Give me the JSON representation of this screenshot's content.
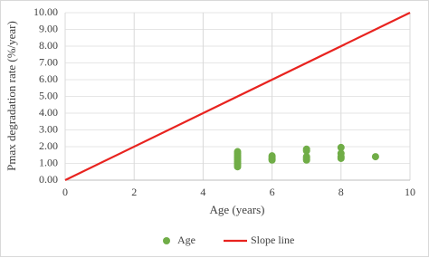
{
  "chart_data": {
    "type": "scatter",
    "x_label": "Age (years)",
    "y_label": "Pmax degradation rate (%/year)",
    "xlim": [
      0,
      10
    ],
    "xticks": [
      0,
      2,
      4,
      6,
      8,
      10
    ],
    "ylim": [
      0,
      10
    ],
    "yticks": [
      {
        "value": 0,
        "label": "0.00"
      },
      {
        "value": 1,
        "label": "1.00"
      },
      {
        "value": 2,
        "label": "2.00"
      },
      {
        "value": 3,
        "label": "3.00"
      },
      {
        "value": 4,
        "label": "4.00"
      },
      {
        "value": 5,
        "label": "5.00"
      },
      {
        "value": 6,
        "label": "6.00"
      },
      {
        "value": 7,
        "label": "7.00"
      },
      {
        "value": 8,
        "label": "8.00"
      },
      {
        "value": 9,
        "label": "9.00"
      },
      {
        "value": 10,
        "label": "10.00"
      }
    ],
    "grid": true,
    "legend": "bottom",
    "series": [
      {
        "name": "Age",
        "type": "scatter",
        "color": "#70ad47",
        "x": [
          5,
          5,
          5,
          5,
          5,
          5,
          5,
          5,
          5,
          5,
          6,
          6,
          6,
          6,
          7,
          7,
          7,
          7,
          7,
          8,
          8,
          8,
          8,
          9
        ],
        "values": [
          1.7,
          1.6,
          1.5,
          1.4,
          1.3,
          1.2,
          1.1,
          1.0,
          0.9,
          0.8,
          1.45,
          1.35,
          1.25,
          1.2,
          1.85,
          1.75,
          1.4,
          1.3,
          1.2,
          1.95,
          1.6,
          1.4,
          1.3,
          1.4
        ]
      },
      {
        "name": "Slope line",
        "type": "line",
        "color": "#e8231f",
        "x": [
          0,
          10
        ],
        "values": [
          0,
          10
        ]
      }
    ]
  }
}
